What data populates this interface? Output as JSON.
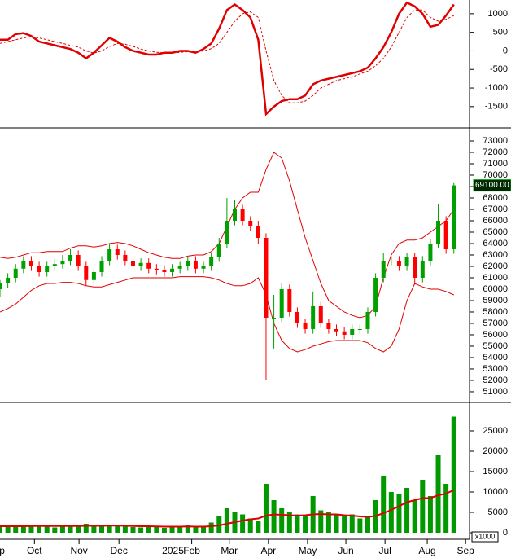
{
  "chart_data": [
    {
      "type": "line",
      "xlim": [
        0,
        60
      ],
      "ylim": [
        -2030,
        1370
      ],
      "yticks": [
        1000,
        500,
        0,
        -500,
        -1000,
        -1500
      ],
      "zero_line_color": "#0000cc",
      "series": [
        {
          "color": "#e00000",
          "style": "solid",
          "values": [
            300,
            300,
            450,
            480,
            400,
            250,
            200,
            150,
            100,
            50,
            -50,
            -200,
            -50,
            150,
            350,
            250,
            100,
            0,
            -50,
            -100,
            -100,
            -50,
            -50,
            0,
            0,
            -50,
            50,
            200,
            600,
            1100,
            1250,
            1100,
            900,
            300,
            -1700,
            -1500,
            -1350,
            -1300,
            -1300,
            -1200,
            -900,
            -800,
            -750,
            -700,
            -650,
            -600,
            -550,
            -450,
            -200,
            100,
            500,
            1000,
            1300,
            1200,
            1000,
            650,
            700,
            950,
            1250
          ]
        },
        {
          "color": "#e00000",
          "style": "dashed",
          "values": [
            200,
            250,
            300,
            350,
            380,
            350,
            300,
            250,
            200,
            150,
            100,
            0,
            -60,
            0,
            120,
            200,
            180,
            120,
            50,
            0,
            -40,
            -50,
            -50,
            -40,
            -20,
            -20,
            0,
            60,
            200,
            500,
            800,
            1000,
            1050,
            900,
            0,
            -800,
            -1200,
            -1400,
            -1400,
            -1350,
            -1200,
            -1000,
            -900,
            -800,
            -750,
            -700,
            -620,
            -550,
            -400,
            -200,
            100,
            500,
            900,
            1100,
            1100,
            900,
            800,
            850,
            950
          ]
        }
      ]
    },
    {
      "type": "candlestick",
      "xlim": [
        0,
        60
      ],
      "ylim": [
        50140,
        73930
      ],
      "yticks": [
        73000,
        72000,
        71000,
        70000,
        69000,
        68000,
        67000,
        66000,
        65000,
        64000,
        63000,
        62000,
        61000,
        60000,
        59000,
        58000,
        57000,
        56000,
        55000,
        54000,
        53000,
        52000,
        51000
      ],
      "last_price": {
        "value": 69100,
        "label": "69100.00"
      },
      "up_color": "#00a000",
      "down_color": "#ff0000",
      "open": [
        60000,
        60500,
        61000,
        61800,
        62500,
        62000,
        61500,
        62000,
        62200,
        62500,
        63000,
        62000,
        60800,
        61500,
        62500,
        63500,
        63000,
        62500,
        62000,
        62300,
        61800,
        61700,
        61500,
        61800,
        62000,
        62500,
        61800,
        62000,
        62800,
        64000,
        66000,
        67000,
        66000,
        65500,
        64500,
        57500,
        57500,
        60000,
        58000,
        57000,
        56500,
        58500,
        57000,
        56500,
        56300,
        56000,
        56500,
        56500,
        58000,
        61000,
        62500,
        62500,
        62000,
        62800,
        61000,
        62500,
        64000,
        66000,
        63500
      ],
      "high": [
        60800,
        61400,
        62200,
        62900,
        62900,
        62400,
        62400,
        62700,
        63000,
        63500,
        63400,
        62400,
        61900,
        62900,
        64000,
        63900,
        63400,
        62900,
        62700,
        62700,
        62200,
        62100,
        62200,
        62400,
        62900,
        62900,
        62400,
        63200,
        64500,
        68000,
        67800,
        67400,
        66400,
        66000,
        64900,
        59500,
        60500,
        60400,
        58400,
        57400,
        59800,
        58900,
        57400,
        56900,
        56700,
        56900,
        56900,
        58400,
        61400,
        63200,
        62900,
        62900,
        63200,
        63200,
        62900,
        64400,
        67500,
        66400,
        69300
      ],
      "low": [
        59300,
        60100,
        60600,
        61400,
        61600,
        61100,
        61100,
        61600,
        61800,
        62100,
        61600,
        60300,
        60400,
        61100,
        62100,
        62600,
        62100,
        61600,
        61600,
        61400,
        61300,
        61100,
        61100,
        61400,
        61600,
        61400,
        61400,
        61600,
        62400,
        63600,
        65600,
        65600,
        65100,
        64000,
        52000,
        54800,
        57100,
        57600,
        56600,
        56100,
        56100,
        56600,
        56100,
        55900,
        55600,
        55600,
        56100,
        56100,
        57600,
        60600,
        62100,
        61600,
        61600,
        60400,
        60600,
        62100,
        63600,
        63100,
        63100
      ],
      "close": [
        60500,
        61000,
        61800,
        62500,
        62000,
        61500,
        62000,
        62200,
        62500,
        63000,
        62000,
        60800,
        61500,
        62500,
        63500,
        63000,
        62500,
        62000,
        62300,
        61800,
        61700,
        61500,
        61800,
        62000,
        62500,
        61800,
        62000,
        62800,
        64000,
        66000,
        67000,
        66000,
        65500,
        64500,
        57500,
        57500,
        60000,
        58000,
        57000,
        56500,
        58500,
        57000,
        56500,
        56300,
        56000,
        56500,
        56500,
        58000,
        61000,
        62500,
        62500,
        62000,
        62800,
        61000,
        62500,
        64000,
        66000,
        63500,
        69100
      ],
      "bands": [
        {
          "color": "#e00000",
          "values": [
            62800,
            62700,
            62800,
            63000,
            63200,
            63200,
            63300,
            63300,
            63300,
            63600,
            63800,
            63800,
            63700,
            63800,
            64000,
            64100,
            64000,
            63800,
            63500,
            63200,
            63000,
            62800,
            62700,
            62700,
            62900,
            63000,
            63000,
            63300,
            64000,
            65500,
            67000,
            68000,
            68500,
            68500,
            70500,
            72000,
            71500,
            69500,
            67000,
            64500,
            62500,
            60500,
            59000,
            58500,
            58000,
            57700,
            57500,
            57700,
            58500,
            61000,
            63000,
            64000,
            64300,
            64300,
            64500,
            65000,
            65500,
            66000,
            67000
          ]
        },
        {
          "color": "#e00000",
          "values": [
            58000,
            58300,
            58700,
            59300,
            59900,
            60300,
            60500,
            60500,
            60600,
            60600,
            60500,
            60300,
            60200,
            60200,
            60400,
            60600,
            60800,
            61000,
            61000,
            61000,
            61000,
            61000,
            61000,
            61100,
            61100,
            61100,
            61100,
            61000,
            60800,
            60500,
            60300,
            60300,
            60500,
            61000,
            59500,
            57000,
            55500,
            54800,
            54500,
            54700,
            55000,
            55200,
            55400,
            55500,
            55500,
            55500,
            55500,
            55300,
            54800,
            54500,
            55000,
            56500,
            59000,
            60500,
            60200,
            60000,
            60000,
            59800,
            59500
          ]
        }
      ]
    },
    {
      "type": "bar",
      "xlim": [
        0,
        60
      ],
      "ylim": [
        -1600,
        31400
      ],
      "yticks": [
        25000,
        20000,
        15000,
        10000,
        5000,
        0
      ],
      "unit_label": "x1000",
      "color": "#009900",
      "ma_color": "#e00000",
      "values": [
        1500,
        1800,
        1600,
        1400,
        1700,
        2000,
        1500,
        1300,
        1800,
        1600,
        1500,
        2200,
        1800,
        1700,
        2000,
        1600,
        1500,
        1400,
        1300,
        1500,
        1400,
        1200,
        1600,
        1500,
        1800,
        1300,
        1500,
        2500,
        4000,
        6000,
        5000,
        4500,
        3500,
        3000,
        12000,
        8000,
        6000,
        5000,
        4500,
        4000,
        9000,
        5500,
        5000,
        4500,
        4000,
        4500,
        3500,
        4000,
        8000,
        14000,
        10000,
        9500,
        11000,
        8000,
        13000,
        9000,
        19000,
        12000,
        28500
      ],
      "ma": [
        1600,
        1600,
        1600,
        1600,
        1650,
        1650,
        1650,
        1650,
        1650,
        1650,
        1650,
        1700,
        1700,
        1700,
        1750,
        1750,
        1700,
        1650,
        1600,
        1600,
        1550,
        1500,
        1500,
        1500,
        1550,
        1500,
        1500,
        1600,
        1800,
        2200,
        2600,
        3000,
        3300,
        3500,
        4200,
        4500,
        4400,
        4300,
        4200,
        4300,
        4500,
        4600,
        4500,
        4500,
        4300,
        4200,
        4000,
        3900,
        4100,
        4800,
        5600,
        6500,
        7500,
        8000,
        8500,
        8500,
        9200,
        9600,
        10500
      ],
      "xticks": [
        {
          "value": -0.5,
          "label": "Sep"
        },
        {
          "value": 4.4,
          "label": "Oct"
        },
        {
          "value": 10.1,
          "label": "Nov"
        },
        {
          "value": 15.2,
          "label": "Dec"
        },
        {
          "value": 22.1,
          "label": "2025"
        },
        {
          "value": 24.5,
          "label": "Feb"
        },
        {
          "value": 29.3,
          "label": "Mar"
        },
        {
          "value": 34.3,
          "label": "Apr"
        },
        {
          "value": 39.3,
          "label": "May"
        },
        {
          "value": 44.2,
          "label": "Jun"
        },
        {
          "value": 49.2,
          "label": "Jul"
        },
        {
          "value": 54.6,
          "label": "Aug"
        },
        {
          "value": 59.5,
          "label": "Sep"
        }
      ]
    }
  ]
}
